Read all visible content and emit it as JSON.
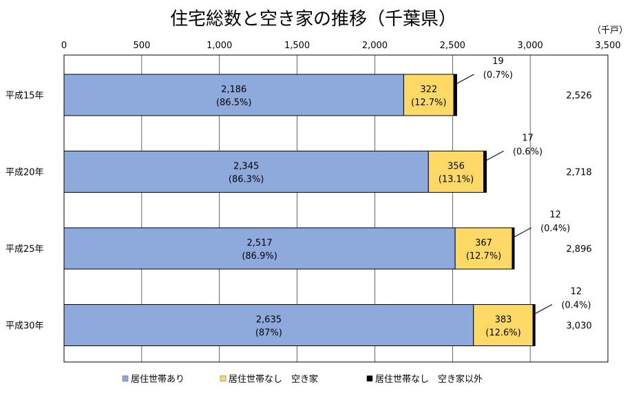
{
  "chart_data": {
    "type": "bar",
    "orientation": "horizontal",
    "stacked": true,
    "title": "住宅総数と空き家の推移（千葉県）",
    "unit": "（千戸）",
    "xlim": [
      0,
      3500
    ],
    "xticks": [
      "0",
      "500",
      "1,000",
      "1,500",
      "2,000",
      "2,500",
      "3,000",
      "3,500"
    ],
    "grid": true,
    "legend_position": "bottom",
    "categories": [
      "平成15年",
      "平成20年",
      "平成25年",
      "平成30年"
    ],
    "series": [
      {
        "name": "居住世帯あり",
        "color": "#8EA9DB",
        "values": [
          2186,
          2345,
          2517,
          2635
        ],
        "value_labels": [
          "2,186",
          "2,345",
          "2,517",
          "2,635"
        ],
        "pct_labels": [
          "(86.5%)",
          "(86.3%)",
          "(86.9%)",
          "(87%)"
        ]
      },
      {
        "name": "居住世帯なし　空き家",
        "color": "#FFD966",
        "values": [
          322,
          356,
          367,
          383
        ],
        "value_labels": [
          "322",
          "356",
          "367",
          "383"
        ],
        "pct_labels": [
          "(12.7%)",
          "(13.1%)",
          "(12.7%)",
          "(12.6%)"
        ]
      },
      {
        "name": "居住世帯なし　空き家以外",
        "color": "#000000",
        "values": [
          19,
          17,
          12,
          12
        ],
        "value_labels": [
          "19",
          "17",
          "12",
          "12"
        ],
        "pct_labels": [
          "(0.7%)",
          "(0.6%)",
          "(0.4%)",
          "(0.4%)"
        ]
      }
    ],
    "totals": [
      2526,
      2718,
      2896,
      3030
    ],
    "total_labels": [
      "2,526",
      "2,718",
      "2,896",
      "3,030"
    ]
  }
}
